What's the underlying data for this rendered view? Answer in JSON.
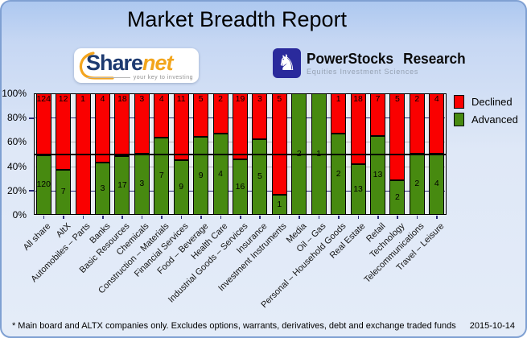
{
  "header": {
    "title": "Market Breadth Report"
  },
  "logos": {
    "sharenet": {
      "text_primary": "Share",
      "text_secondary": "net",
      "tagline": "your key to investing"
    },
    "powerstocks": {
      "title_left": "PowerStocks",
      "title_right": "Research",
      "tagline": "Equities Investment Sciences",
      "knight_glyph": "♞"
    }
  },
  "chart_data": {
    "type": "bar",
    "stacked": true,
    "percent_normalized": true,
    "title": "Market Breadth Report",
    "categories": [
      "All share",
      "AltX",
      "Automobiles – Parts",
      "Banks",
      "Basic Resources",
      "Chemicals",
      "Construction – Materials",
      "Financial Services",
      "Food – Beverage",
      "Health Care",
      "Industrial Goods – Services",
      "Insurance",
      "Investment Instruments",
      "Media",
      "Oil – Gas",
      "Personal – Household Goods",
      "Real Estate",
      "Retail",
      "Technology",
      "Telecommunications",
      "Travel – Leisure"
    ],
    "series": [
      {
        "name": "Declined",
        "color": "#fa0000",
        "values": [
          124,
          12,
          1,
          4,
          18,
          3,
          4,
          11,
          5,
          2,
          19,
          3,
          5,
          0,
          0,
          1,
          18,
          7,
          5,
          2,
          4
        ]
      },
      {
        "name": "Advanced",
        "color": "#478a10",
        "values": [
          120,
          7,
          0,
          3,
          17,
          3,
          7,
          9,
          9,
          4,
          16,
          5,
          1,
          2,
          1,
          2,
          13,
          13,
          2,
          2,
          4
        ]
      }
    ],
    "xlabel": "",
    "ylabel": "",
    "yticks": [
      "0%",
      "20%",
      "40%",
      "60%",
      "80%",
      "100%"
    ],
    "ylim": [
      0,
      100
    ],
    "grid": true,
    "reference_line_pct": 50,
    "legend_position": "top-right"
  },
  "colors": {
    "declined": "#fa0000",
    "advanced": "#478a10",
    "plot_background": "#e9edf3",
    "grid_navy": "#2b2b7a",
    "grid_gray": "#b6b6b6",
    "panel_border": "#7fa0d2"
  },
  "footer": {
    "note": "* Main board and ALTX companies only. Excludes options, warrants, derivatives, debt and exchange traded funds",
    "date": "2015-10-14"
  }
}
